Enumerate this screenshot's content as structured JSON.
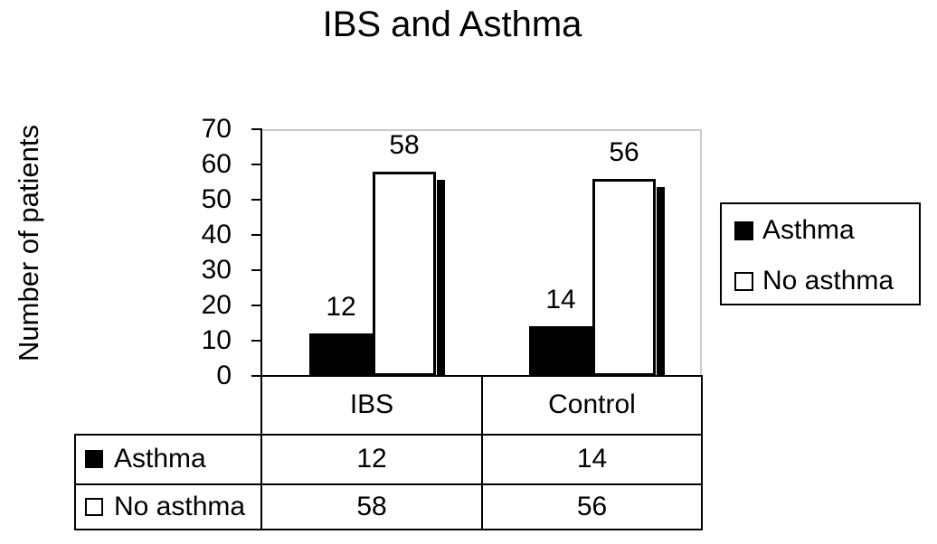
{
  "chart_data": {
    "type": "bar",
    "title": "IBS and Asthma",
    "ylabel": "Number of patients",
    "xlabel": "",
    "categories": [
      "IBS",
      "Control"
    ],
    "series": [
      {
        "name": "Asthma",
        "values": [
          12,
          14
        ],
        "fill": "#000000"
      },
      {
        "name": "No asthma",
        "values": [
          58,
          56
        ],
        "fill": "#ffffff"
      }
    ],
    "ylim": [
      0,
      70
    ],
    "ytick_step": 10,
    "yticks": [
      0,
      10,
      20,
      30,
      40,
      50,
      60,
      70
    ],
    "grid": false,
    "legend_position": "right",
    "data_labels_shown": true,
    "data_table_shown": true
  },
  "colors": {
    "asthma_fill": "#000000",
    "no_asthma_fill": "#ffffff",
    "bar_border": "#000000",
    "bar_shadow": "#000000",
    "plot_border": "#c9c9c9",
    "axis": "#000000",
    "text": "#000000",
    "background": "#ffffff"
  }
}
